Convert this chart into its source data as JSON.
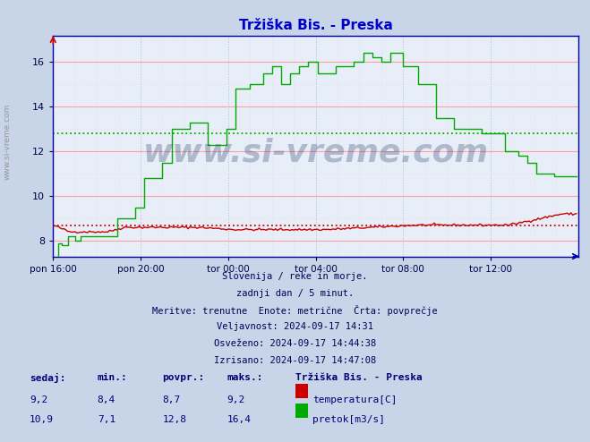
{
  "title": "Tržiška Bis. - Preska",
  "title_color": "#0000cc",
  "fig_bg_color": "#c8d4e8",
  "plot_bg_color": "#e8eef8",
  "xlabel_ticks": [
    "pon 16:00",
    "pon 20:00",
    "tor 00:00",
    "tor 04:00",
    "tor 08:00",
    "tor 12:00"
  ],
  "ylabel_ticks": [
    8,
    10,
    12,
    14,
    16
  ],
  "ylim": [
    7.3,
    17.2
  ],
  "xlim": [
    0,
    288
  ],
  "text_lines": [
    "Slovenija / reke in morje.",
    "zadnji dan / 5 minut.",
    "Meritve: trenutne  Enote: metrične  Črta: povprečje",
    "Veljavnost: 2024-09-17 14:31",
    "Osveženo: 2024-09-17 14:44:38",
    "Izrisano: 2024-09-17 14:47:08"
  ],
  "table_header": [
    "sedaj:",
    "min.:",
    "povpr.:",
    "maks.:",
    "Tržiška Bis. - Preska"
  ],
  "table_row1": [
    "9,2",
    "8,4",
    "8,7",
    "9,2",
    "temperatura[C]"
  ],
  "table_row2": [
    "10,9",
    "7,1",
    "12,8",
    "16,4",
    "pretok[m3/s]"
  ],
  "temp_avg": 8.7,
  "flow_avg": 12.8,
  "temp_color": "#cc0000",
  "flow_color": "#00aa00",
  "watermark_text": "www.si-vreme.com",
  "watermark_color": "#1a3060",
  "watermark_alpha": 0.28,
  "side_text": "www.si-vreme.com",
  "side_text_color": "#888888"
}
